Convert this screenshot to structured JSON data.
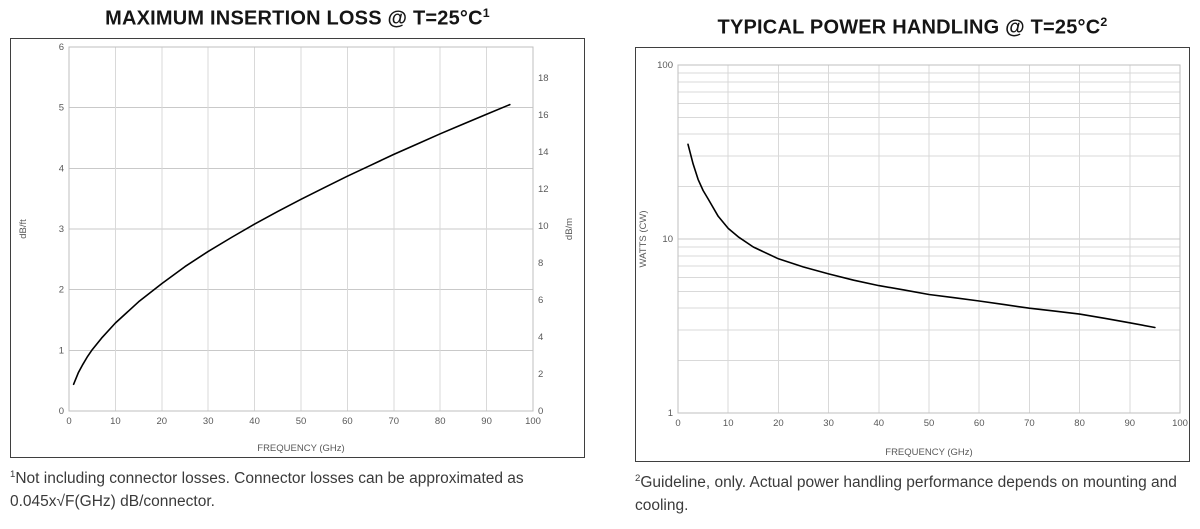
{
  "left": {
    "title": "MAXIMUM INSERTION LOSS @ T=25°C",
    "title_sup": "1",
    "footnote_sup": "1",
    "footnote": "Not including connector losses.  Connector losses can be approximated as 0.045x√F(GHz) dB/connector."
  },
  "right": {
    "title": "TYPICAL POWER HANDLING @ T=25°C",
    "title_sup": "2",
    "footnote_sup": "2",
    "footnote": "Guideline, only.  Actual power handling performance depends on mounting and cooling."
  },
  "chart_data": [
    {
      "type": "line",
      "title": "MAXIMUM INSERTION LOSS @ T=25°C¹",
      "xlabel": "FREQUENCY (GHz)",
      "ylabel": "dB/ft",
      "xlim": [
        0,
        100
      ],
      "ylim": [
        0,
        6
      ],
      "x_ticks": [
        0,
        10,
        20,
        30,
        40,
        50,
        60,
        70,
        80,
        90,
        100
      ],
      "y_ticks": [
        0,
        1,
        2,
        3,
        4,
        5,
        6
      ],
      "y_right": {
        "label": "dB/m",
        "lim": [
          0,
          19.69
        ],
        "ticks": [
          0,
          2,
          4,
          6,
          8,
          10,
          12,
          14,
          16,
          18
        ]
      },
      "grid": true,
      "grid_color": "#d9d9d9",
      "line_color": "#000000",
      "series": [
        {
          "name": "Maximum insertion loss (dB/ft)",
          "x": [
            1,
            2,
            3,
            4,
            5,
            7,
            10,
            15,
            20,
            25,
            30,
            35,
            40,
            45,
            50,
            55,
            60,
            65,
            70,
            75,
            80,
            85,
            90,
            95
          ],
          "y": [
            0.44,
            0.63,
            0.77,
            0.9,
            1.01,
            1.2,
            1.45,
            1.8,
            2.1,
            2.38,
            2.63,
            2.86,
            3.08,
            3.29,
            3.49,
            3.68,
            3.87,
            4.05,
            4.23,
            4.4,
            4.57,
            4.73,
            4.89,
            5.05
          ]
        }
      ]
    },
    {
      "type": "line",
      "title": "TYPICAL POWER HANDLING @ T=25°C²",
      "xlabel": "FREQUENCY (GHz)",
      "ylabel": "WATTS (CW)",
      "xlim": [
        0,
        100
      ],
      "yscale": "log",
      "ylim": [
        1,
        100
      ],
      "x_ticks": [
        0,
        10,
        20,
        30,
        40,
        50,
        60,
        70,
        80,
        90,
        100
      ],
      "y_ticks": [
        1,
        10,
        100
      ],
      "y_minor_ticks": [
        2,
        3,
        4,
        5,
        6,
        7,
        8,
        9,
        20,
        30,
        40,
        50,
        60,
        70,
        80,
        90
      ],
      "grid": true,
      "grid_color": "#d9d9d9",
      "line_color": "#000000",
      "series": [
        {
          "name": "Typical power handling (W CW)",
          "x": [
            2,
            3,
            4,
            5,
            6,
            8,
            10,
            12,
            15,
            20,
            25,
            30,
            35,
            40,
            45,
            50,
            55,
            60,
            65,
            70,
            75,
            80,
            85,
            90,
            95
          ],
          "y": [
            35,
            27,
            22,
            19,
            17,
            13.5,
            11.5,
            10.3,
            9.0,
            7.7,
            6.9,
            6.3,
            5.8,
            5.4,
            5.1,
            4.8,
            4.6,
            4.4,
            4.2,
            4.0,
            3.85,
            3.7,
            3.5,
            3.3,
            3.1
          ]
        }
      ]
    }
  ]
}
